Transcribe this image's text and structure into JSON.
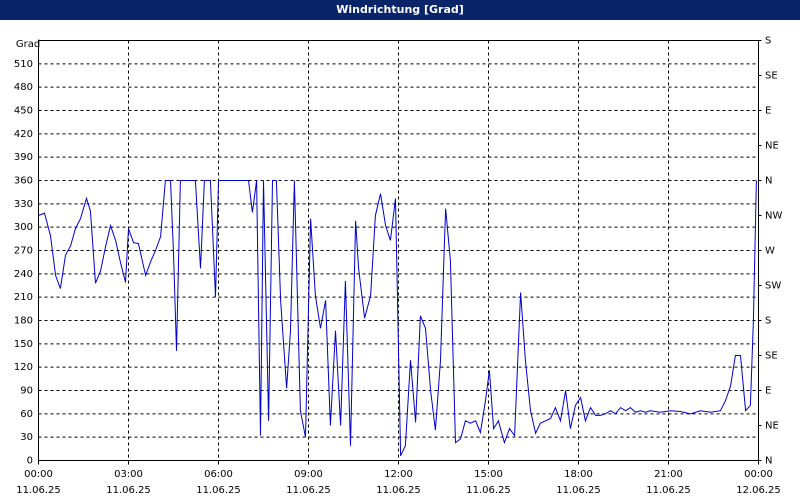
{
  "chart_data": {
    "type": "line",
    "title": "Windrichtung [Grad]",
    "ylabel": "Grad",
    "color": "#0000c8",
    "grid": true,
    "xlim": [
      0,
      24
    ],
    "xticks": [
      {
        "value": 0,
        "label": "00:00",
        "date": "11.06.25"
      },
      {
        "value": 3,
        "label": "03:00",
        "date": "11.06.25"
      },
      {
        "value": 6,
        "label": "06:00",
        "date": "11.06.25"
      },
      {
        "value": 9,
        "label": "09:00",
        "date": "11.06.25"
      },
      {
        "value": 12,
        "label": "12:00",
        "date": "11.06.25"
      },
      {
        "value": 15,
        "label": "15:00",
        "date": "11.06.25"
      },
      {
        "value": 18,
        "label": "18:00",
        "date": "11.06.25"
      },
      {
        "value": 21,
        "label": "21:00",
        "date": "11.06.25"
      },
      {
        "value": 24,
        "label": "00:00",
        "date": "12.06.25"
      }
    ],
    "ylim": [
      0,
      540
    ],
    "yticks": [
      0,
      30,
      60,
      90,
      120,
      150,
      180,
      210,
      240,
      270,
      300,
      330,
      360,
      390,
      420,
      450,
      480,
      510
    ],
    "y2lim": [
      0,
      540
    ],
    "y2ticks": [
      {
        "value": 0,
        "label": "N"
      },
      {
        "value": 45,
        "label": "NE"
      },
      {
        "value": 90,
        "label": "E"
      },
      {
        "value": 135,
        "label": "SE"
      },
      {
        "value": 180,
        "label": "S"
      },
      {
        "value": 225,
        "label": "SW"
      },
      {
        "value": 270,
        "label": "W"
      },
      {
        "value": 315,
        "label": "NW"
      },
      {
        "value": 360,
        "label": "N"
      },
      {
        "value": 405,
        "label": "NE"
      },
      {
        "value": 450,
        "label": "E"
      },
      {
        "value": 495,
        "label": "SE"
      },
      {
        "value": 540,
        "label": "S"
      }
    ],
    "x": [
      0,
      0.2,
      0.4,
      0.57,
      0.73,
      0.9,
      1.07,
      1.23,
      1.4,
      1.6,
      1.73,
      1.9,
      2.07,
      2.23,
      2.4,
      2.57,
      2.73,
      2.9,
      3,
      3.17,
      3.33,
      3.57,
      3.73,
      3.9,
      4.07,
      4.23,
      4.4,
      4.5,
      4.6,
      4.73,
      5.07,
      5.23,
      5.4,
      5.53,
      5.73,
      5.9,
      6,
      7,
      7.13,
      7.27,
      7.4,
      7.5,
      7.67,
      7.8,
      7.93,
      8.07,
      8.27,
      8.4,
      8.53,
      8.73,
      8.9,
      9.07,
      9.23,
      9.4,
      9.57,
      9.73,
      9.9,
      10.07,
      10.23,
      10.4,
      10.57,
      10.67,
      10.87,
      11.07,
      11.23,
      11.4,
      11.57,
      11.73,
      11.9,
      12.07,
      12.23,
      12.4,
      12.57,
      12.73,
      12.9,
      13.07,
      13.23,
      13.4,
      13.57,
      13.73,
      13.9,
      14.07,
      14.23,
      14.4,
      14.57,
      14.73,
      14.9,
      15.03,
      15.17,
      15.33,
      15.53,
      15.7,
      15.87,
      16.07,
      16.23,
      16.4,
      16.57,
      16.73,
      16.9,
      17.07,
      17.23,
      17.4,
      17.57,
      17.73,
      17.9,
      18.07,
      18.23,
      18.4,
      18.57,
      18.73,
      18.9,
      19.07,
      19.23,
      19.4,
      19.57,
      19.73,
      19.9,
      20.07,
      20.23,
      20.4,
      20.73,
      21.07,
      21.4,
      21.73,
      22.07,
      22.4,
      22.73,
      22.9,
      23.07,
      23.23,
      23.4,
      23.57,
      23.73,
      23.83,
      23.93
    ],
    "values": [
      315,
      318,
      289,
      238,
      221,
      264,
      276,
      298,
      311,
      337,
      321,
      228,
      244,
      274,
      302,
      283,
      255,
      229,
      298,
      280,
      279,
      238,
      255,
      270,
      288,
      360,
      360,
      267,
      141,
      360,
      360,
      360,
      247,
      360,
      360,
      210,
      360,
      360,
      319,
      360,
      32,
      360,
      51,
      360,
      360,
      206,
      93,
      167,
      360,
      64,
      30,
      311,
      212,
      170,
      206,
      45,
      167,
      45,
      231,
      19,
      308,
      247,
      183,
      212,
      315,
      343,
      302,
      283,
      337,
      6,
      19,
      129,
      49,
      186,
      170,
      90,
      39,
      129,
      324,
      257,
      23,
      28,
      51,
      48,
      51,
      36,
      77,
      116,
      41,
      51,
      23,
      41,
      32,
      216,
      129,
      64,
      35,
      48,
      51,
      54,
      68,
      51,
      90,
      41,
      71,
      81,
      51,
      68,
      58,
      58,
      60,
      64,
      60,
      68,
      64,
      68,
      62,
      64,
      62,
      64,
      62,
      64,
      63,
      60,
      64,
      62,
      64,
      77,
      96,
      135,
      135,
      64,
      71,
      180,
      360
    ]
  }
}
